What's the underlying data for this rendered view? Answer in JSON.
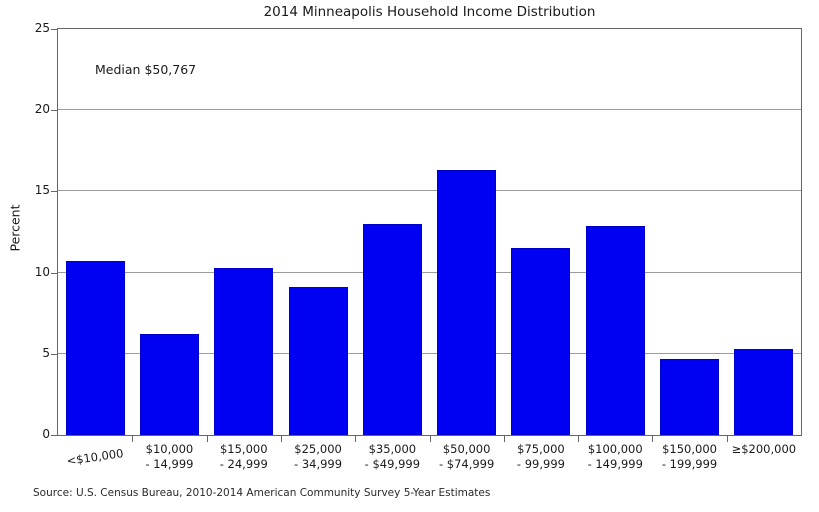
{
  "chart_data": {
    "type": "bar",
    "title": "2014 Minneapolis Household Income Distribution",
    "annotation": "Median $50,767",
    "ylabel": "Percent",
    "xlabel": "",
    "ylim": [
      0,
      25
    ],
    "yticks": [
      0,
      5,
      10,
      15,
      20,
      25
    ],
    "grid": "horizontal gridlines at y tick values, full plot box frame",
    "legend": "none",
    "categories": [
      [
        "<$10,000"
      ],
      [
        "$10,000",
        "- 14,999"
      ],
      [
        "$15,000",
        "- 24,999"
      ],
      [
        "$25,000",
        "- 34,999"
      ],
      [
        "$35,000",
        "- $49,999"
      ],
      [
        "$50,000",
        "- $74,999"
      ],
      [
        "$75,000",
        "- 99,999"
      ],
      [
        "$100,000",
        "- 149,999"
      ],
      [
        "$150,000",
        "- 199,999"
      ],
      [
        "≥$200,000"
      ]
    ],
    "values": [
      10.7,
      6.2,
      10.3,
      9.1,
      13.0,
      16.3,
      11.5,
      12.9,
      4.7,
      5.3
    ],
    "source": "Source: U.S. Census Bureau, 2010-2014 American Community Survey 5-Year Estimates",
    "colors": {
      "bar_fill": "#0000f2",
      "bar_edge": "#0000cc",
      "gridline": "#9b9b9b",
      "spine": "#666666",
      "text": "#1a1a1a"
    }
  }
}
